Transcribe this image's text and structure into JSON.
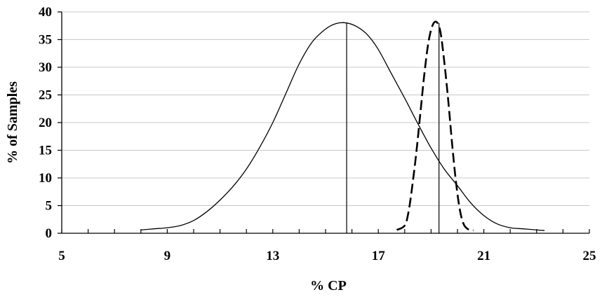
{
  "chart_data": {
    "type": "line",
    "title": "",
    "xlabel": "% CP",
    "ylabel": "% of Samples",
    "xlim": [
      5,
      25
    ],
    "ylim": [
      0,
      40
    ],
    "x_tick_labels": [
      "5",
      "9",
      "13",
      "17",
      "21",
      "25"
    ],
    "y_tick_labels": [
      "0",
      "5",
      "10",
      "15",
      "20",
      "25",
      "30",
      "35",
      "40"
    ],
    "grid": "horizontal",
    "legend": "none",
    "series": [
      {
        "style": "solid",
        "color": "#000000",
        "points": [
          [
            8.0,
            0.6
          ],
          [
            8.5,
            0.8
          ],
          [
            9.0,
            1.0
          ],
          [
            9.5,
            1.4
          ],
          [
            10.0,
            2.3
          ],
          [
            10.5,
            3.9
          ],
          [
            11.0,
            6.0
          ],
          [
            11.5,
            8.5
          ],
          [
            12.0,
            11.6
          ],
          [
            12.5,
            15.5
          ],
          [
            13.0,
            20.0
          ],
          [
            13.5,
            25.3
          ],
          [
            14.0,
            30.6
          ],
          [
            14.5,
            34.6
          ],
          [
            15.0,
            36.9
          ],
          [
            15.4,
            37.9
          ],
          [
            15.8,
            38.0
          ],
          [
            16.2,
            37.3
          ],
          [
            16.6,
            35.8
          ],
          [
            17.0,
            33.2
          ],
          [
            17.5,
            28.8
          ],
          [
            18.0,
            24.4
          ],
          [
            18.5,
            19.8
          ],
          [
            19.0,
            15.4
          ],
          [
            19.5,
            11.6
          ],
          [
            20.0,
            8.6
          ],
          [
            20.5,
            5.5
          ],
          [
            21.0,
            3.2
          ],
          [
            21.5,
            1.7
          ],
          [
            22.0,
            1.0
          ],
          [
            22.5,
            0.8
          ],
          [
            23.0,
            0.6
          ],
          [
            23.3,
            0.5
          ]
        ]
      },
      {
        "style": "dashed",
        "color": "#000000",
        "points": [
          [
            17.7,
            0.6
          ],
          [
            18.0,
            1.4
          ],
          [
            18.15,
            4.0
          ],
          [
            18.3,
            9.0
          ],
          [
            18.45,
            15.0
          ],
          [
            18.6,
            22.0
          ],
          [
            18.75,
            29.0
          ],
          [
            18.9,
            34.5
          ],
          [
            19.05,
            37.5
          ],
          [
            19.2,
            38.2
          ],
          [
            19.35,
            36.5
          ],
          [
            19.5,
            31.0
          ],
          [
            19.65,
            24.0
          ],
          [
            19.8,
            16.0
          ],
          [
            19.95,
            9.0
          ],
          [
            20.1,
            4.0
          ],
          [
            20.25,
            1.5
          ],
          [
            20.45,
            0.6
          ],
          [
            20.6,
            0.5
          ]
        ]
      }
    ],
    "vertical_reference_lines": [
      {
        "x": 15.8,
        "y_top": 38.0
      },
      {
        "x": 19.3,
        "y_top": 38.0
      }
    ]
  }
}
